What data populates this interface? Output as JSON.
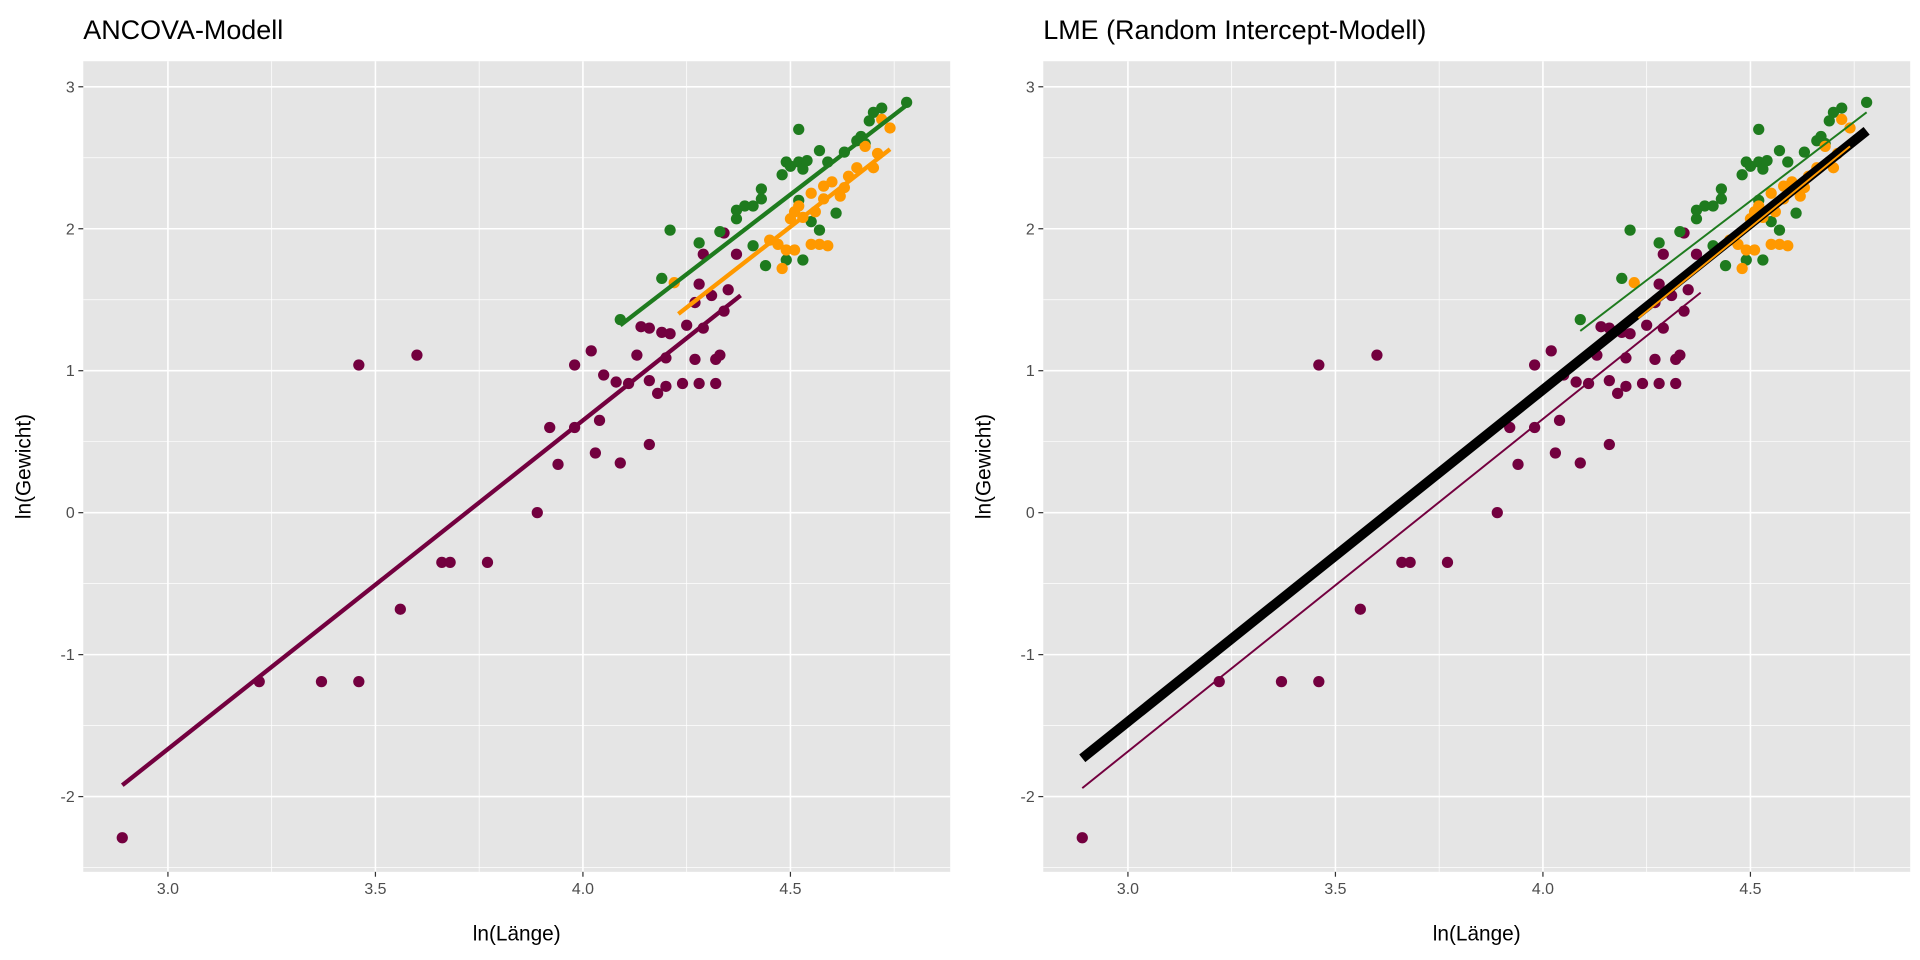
{
  "chart_data": [
    {
      "type": "scatter",
      "title": "ANCOVA-Modell",
      "xlabel": "ln(Länge)",
      "ylabel": "ln(Gewicht)",
      "xlim": [
        2.796,
        4.885
      ],
      "ylim": [
        -2.53,
        3.18
      ],
      "xticks": [
        3.0,
        3.5,
        4.0,
        4.5
      ],
      "xtick_labels": [
        "3.0",
        "3.5",
        "4.0",
        "4.5"
      ],
      "yticks": [
        -2,
        -1,
        0,
        1,
        2,
        3
      ],
      "ytick_labels": [
        "-2",
        "-1",
        "0",
        "1",
        "2",
        "3"
      ],
      "grid": true,
      "lines": [
        {
          "group": "purple",
          "color": "#73003f",
          "width": 3.5,
          "x": [
            2.89,
            4.38
          ],
          "y": [
            -1.92,
            1.53
          ]
        },
        {
          "group": "green",
          "color": "#1e7b1e",
          "width": 3.5,
          "x": [
            4.09,
            4.78
          ],
          "y": [
            1.32,
            2.87
          ]
        },
        {
          "group": "orange",
          "color": "#ff9900",
          "width": 3.5,
          "x": [
            4.23,
            4.74
          ],
          "y": [
            1.4,
            2.56
          ]
        }
      ]
    },
    {
      "type": "scatter",
      "title": "LME (Random Intercept-Modell)",
      "xlabel": "ln(Länge)",
      "ylabel": "ln(Gewicht)",
      "xlim": [
        2.796,
        4.885
      ],
      "ylim": [
        -2.53,
        3.18
      ],
      "xticks": [
        3.0,
        3.5,
        4.0,
        4.5
      ],
      "xtick_labels": [
        "3.0",
        "3.5",
        "4.0",
        "4.5"
      ],
      "yticks": [
        -2,
        -1,
        0,
        1,
        2,
        3
      ],
      "ytick_labels": [
        "-2",
        "-1",
        "0",
        "1",
        "2",
        "3"
      ],
      "grid": true,
      "lines": [
        {
          "group": "population",
          "color": "#000000",
          "width": 8,
          "x": [
            2.89,
            4.78
          ],
          "y": [
            -1.73,
            2.69
          ]
        },
        {
          "group": "purple",
          "color": "#73003f",
          "width": 1.6,
          "x": [
            2.89,
            4.38
          ],
          "y": [
            -1.94,
            1.55
          ]
        },
        {
          "group": "green",
          "color": "#1e7b1e",
          "width": 1.6,
          "x": [
            4.09,
            4.78
          ],
          "y": [
            1.28,
            2.82
          ]
        },
        {
          "group": "orange",
          "color": "#ff9900",
          "width": 1.6,
          "x": [
            4.23,
            4.74
          ],
          "y": [
            1.37,
            2.58
          ]
        }
      ]
    }
  ],
  "series": [
    {
      "group": "purple",
      "color": "#73003f",
      "points": [
        [
          2.89,
          -2.29
        ],
        [
          3.22,
          -1.19
        ],
        [
          3.37,
          -1.19
        ],
        [
          3.46,
          -1.19
        ],
        [
          3.46,
          1.04
        ],
        [
          3.56,
          -0.68
        ],
        [
          3.6,
          1.11
        ],
        [
          3.66,
          -0.35
        ],
        [
          3.68,
          -0.35
        ],
        [
          3.77,
          -0.35
        ],
        [
          3.89,
          0.0
        ],
        [
          3.92,
          0.6
        ],
        [
          3.94,
          0.34
        ],
        [
          3.98,
          0.6
        ],
        [
          3.98,
          1.04
        ],
        [
          4.02,
          1.14
        ],
        [
          4.03,
          0.42
        ],
        [
          4.04,
          0.65
        ],
        [
          4.05,
          0.97
        ],
        [
          4.08,
          0.92
        ],
        [
          4.09,
          0.35
        ],
        [
          4.11,
          0.91
        ],
        [
          4.13,
          1.11
        ],
        [
          4.14,
          1.31
        ],
        [
          4.16,
          0.48
        ],
        [
          4.16,
          1.3
        ],
        [
          4.16,
          0.93
        ],
        [
          4.18,
          0.84
        ],
        [
          4.19,
          1.27
        ],
        [
          4.2,
          0.89
        ],
        [
          4.21,
          1.26
        ],
        [
          4.2,
          1.09
        ],
        [
          4.24,
          0.91
        ],
        [
          4.25,
          1.32
        ],
        [
          4.27,
          1.08
        ],
        [
          4.28,
          0.91
        ],
        [
          4.29,
          1.3
        ],
        [
          4.32,
          0.91
        ],
        [
          4.32,
          1.08
        ],
        [
          4.33,
          1.11
        ],
        [
          4.34,
          1.42
        ],
        [
          4.35,
          1.57
        ],
        [
          4.27,
          1.48
        ],
        [
          4.28,
          1.61
        ],
        [
          4.29,
          1.82
        ],
        [
          4.31,
          1.53
        ],
        [
          4.34,
          1.97
        ],
        [
          4.37,
          1.82
        ]
      ]
    },
    {
      "group": "green",
      "color": "#1e7b1e",
      "points": [
        [
          4.09,
          1.36
        ],
        [
          4.19,
          1.65
        ],
        [
          4.21,
          1.99
        ],
        [
          4.28,
          1.9
        ],
        [
          4.33,
          1.98
        ],
        [
          4.37,
          2.07
        ],
        [
          4.37,
          2.13
        ],
        [
          4.39,
          2.16
        ],
        [
          4.41,
          2.16
        ],
        [
          4.43,
          2.21
        ],
        [
          4.43,
          2.28
        ],
        [
          4.41,
          1.88
        ],
        [
          4.44,
          1.74
        ],
        [
          4.48,
          2.38
        ],
        [
          4.49,
          2.47
        ],
        [
          4.5,
          2.44
        ],
        [
          4.52,
          2.7
        ],
        [
          4.52,
          2.47
        ],
        [
          4.53,
          2.42
        ],
        [
          4.54,
          2.48
        ],
        [
          4.52,
          2.2
        ],
        [
          4.53,
          1.78
        ],
        [
          4.55,
          2.05
        ],
        [
          4.57,
          1.99
        ],
        [
          4.57,
          2.55
        ],
        [
          4.59,
          2.47
        ],
        [
          4.63,
          2.54
        ],
        [
          4.66,
          2.62
        ],
        [
          4.68,
          2.6
        ],
        [
          4.69,
          2.76
        ],
        [
          4.7,
          2.82
        ],
        [
          4.72,
          2.85
        ],
        [
          4.78,
          2.89
        ],
        [
          4.67,
          2.65
        ],
        [
          4.61,
          2.11
        ],
        [
          4.49,
          1.78
        ]
      ]
    },
    {
      "group": "orange",
      "color": "#ff9900",
      "points": [
        [
          4.22,
          1.62
        ],
        [
          4.45,
          1.92
        ],
        [
          4.47,
          1.89
        ],
        [
          4.48,
          1.72
        ],
        [
          4.49,
          1.85
        ],
        [
          4.51,
          1.85
        ],
        [
          4.51,
          2.12
        ],
        [
          4.52,
          2.16
        ],
        [
          4.53,
          2.08
        ],
        [
          4.55,
          1.89
        ],
        [
          4.56,
          2.12
        ],
        [
          4.58,
          2.21
        ],
        [
          4.58,
          2.3
        ],
        [
          4.6,
          2.33
        ],
        [
          4.62,
          2.23
        ],
        [
          4.63,
          2.29
        ],
        [
          4.64,
          2.37
        ],
        [
          4.66,
          2.43
        ],
        [
          4.68,
          2.58
        ],
        [
          4.7,
          2.43
        ],
        [
          4.71,
          2.53
        ],
        [
          4.72,
          2.77
        ],
        [
          4.74,
          2.71
        ],
        [
          4.55,
          2.25
        ],
        [
          4.5,
          2.07
        ],
        [
          4.59,
          1.88
        ],
        [
          4.57,
          1.89
        ]
      ]
    }
  ],
  "colors": {
    "panel_bg": "#e5e5e5",
    "grid": "#ffffff"
  }
}
